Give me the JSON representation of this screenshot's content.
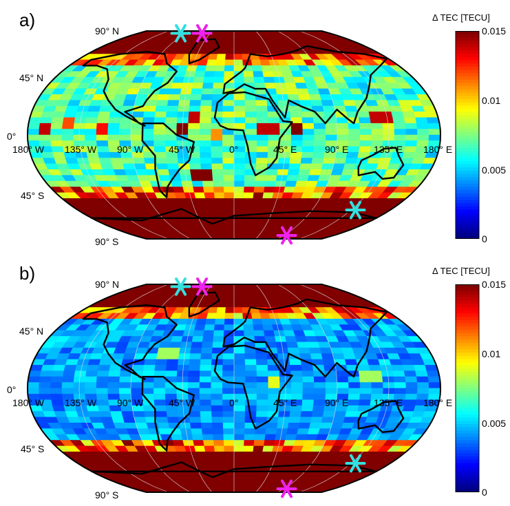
{
  "colorbar": {
    "title": "Δ TEC [TECU]",
    "ticks": [
      "0.015",
      "0.01",
      "0.005",
      "0"
    ],
    "range": [
      0,
      0.015
    ],
    "colormap": "jet"
  },
  "latitude_labels": [
    "90° N",
    "45° N",
    "0°",
    "45° S",
    "90° S"
  ],
  "longitude_labels": [
    "180° W",
    "135° W",
    "90° W",
    "45° W",
    "0°",
    "45° E",
    "90° E",
    "135° E",
    "180° E"
  ],
  "panels": [
    {
      "label": "a)",
      "typical_value": 0.0065,
      "high_latitude_value": 0.015,
      "equatorial_hotspots": [
        {
          "lon": -165,
          "lat": 5,
          "value": 0.014
        },
        {
          "lon": -145,
          "lat": 8,
          "value": 0.012
        },
        {
          "lon": -115,
          "lat": 5,
          "value": 0.013
        },
        {
          "lon": -45,
          "lat": 5,
          "value": 0.015
        },
        {
          "lon": -35,
          "lat": 15,
          "value": 0.014
        },
        {
          "lon": 30,
          "lat": 5,
          "value": 0.014
        },
        {
          "lon": 55,
          "lat": 5,
          "value": 0.015
        },
        {
          "lon": 130,
          "lat": 15,
          "value": 0.014
        },
        {
          "lon": -15,
          "lat": 0,
          "value": 0.011
        },
        {
          "lon": -30,
          "lat": -35,
          "value": 0.015
        }
      ],
      "markers": [
        {
          "color": "#33e0e0",
          "lon": -100,
          "lat": 88
        },
        {
          "color": "#ee22ee",
          "lon": -60,
          "lat": 88
        },
        {
          "color": "#33e0e0",
          "lon": 140,
          "lat": -65
        },
        {
          "color": "#ee22ee",
          "lon": 95,
          "lat": -87
        }
      ]
    },
    {
      "label": "b)",
      "typical_value": 0.004,
      "high_latitude_value": 0.015,
      "equatorial_hotspots": [
        {
          "lon": 35,
          "lat": 5,
          "value": 0.009
        },
        {
          "lon": -60,
          "lat": 30,
          "value": 0.008
        },
        {
          "lon": 120,
          "lat": 10,
          "value": 0.008
        }
      ],
      "markers": [
        {
          "color": "#33e0e0",
          "lon": -100,
          "lat": 88
        },
        {
          "color": "#ee22ee",
          "lon": -60,
          "lat": 88
        },
        {
          "color": "#33e0e0",
          "lon": 140,
          "lat": -65
        },
        {
          "color": "#ee22ee",
          "lon": 95,
          "lat": -87
        }
      ]
    }
  ]
}
